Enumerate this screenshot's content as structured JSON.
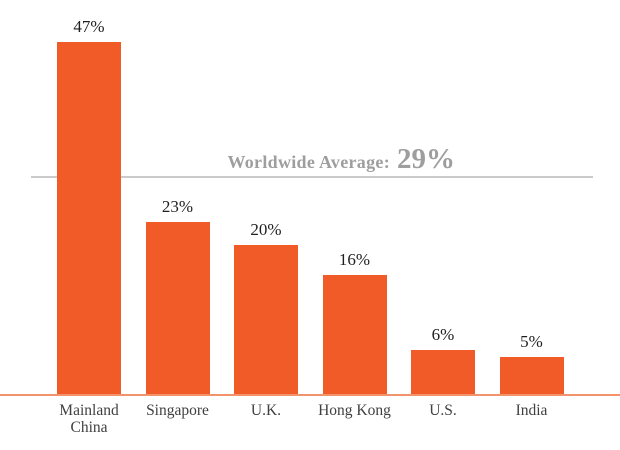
{
  "chart_data": {
    "type": "bar",
    "categories": [
      "Mainland China",
      "Singapore",
      "U.K.",
      "Hong Kong",
      "U.S.",
      "India"
    ],
    "values": [
      47,
      23,
      20,
      16,
      6,
      5
    ],
    "value_labels": [
      "47%",
      "23%",
      "20%",
      "16%",
      "6%",
      "5%"
    ],
    "unit": "%",
    "annotation": {
      "label": "Worldwide Average:",
      "value": "29%",
      "line_value": 29
    },
    "ylim": [
      0,
      47
    ],
    "grid": false,
    "legend": "none",
    "colors": {
      "bar": "#f05b28",
      "axis_line": "#f2936b",
      "average_line": "#cacaca",
      "annotation_text": "#9e9e9e",
      "value_label": "#1f1f1f",
      "category_label": "#404040",
      "background": "#ffffff"
    }
  }
}
